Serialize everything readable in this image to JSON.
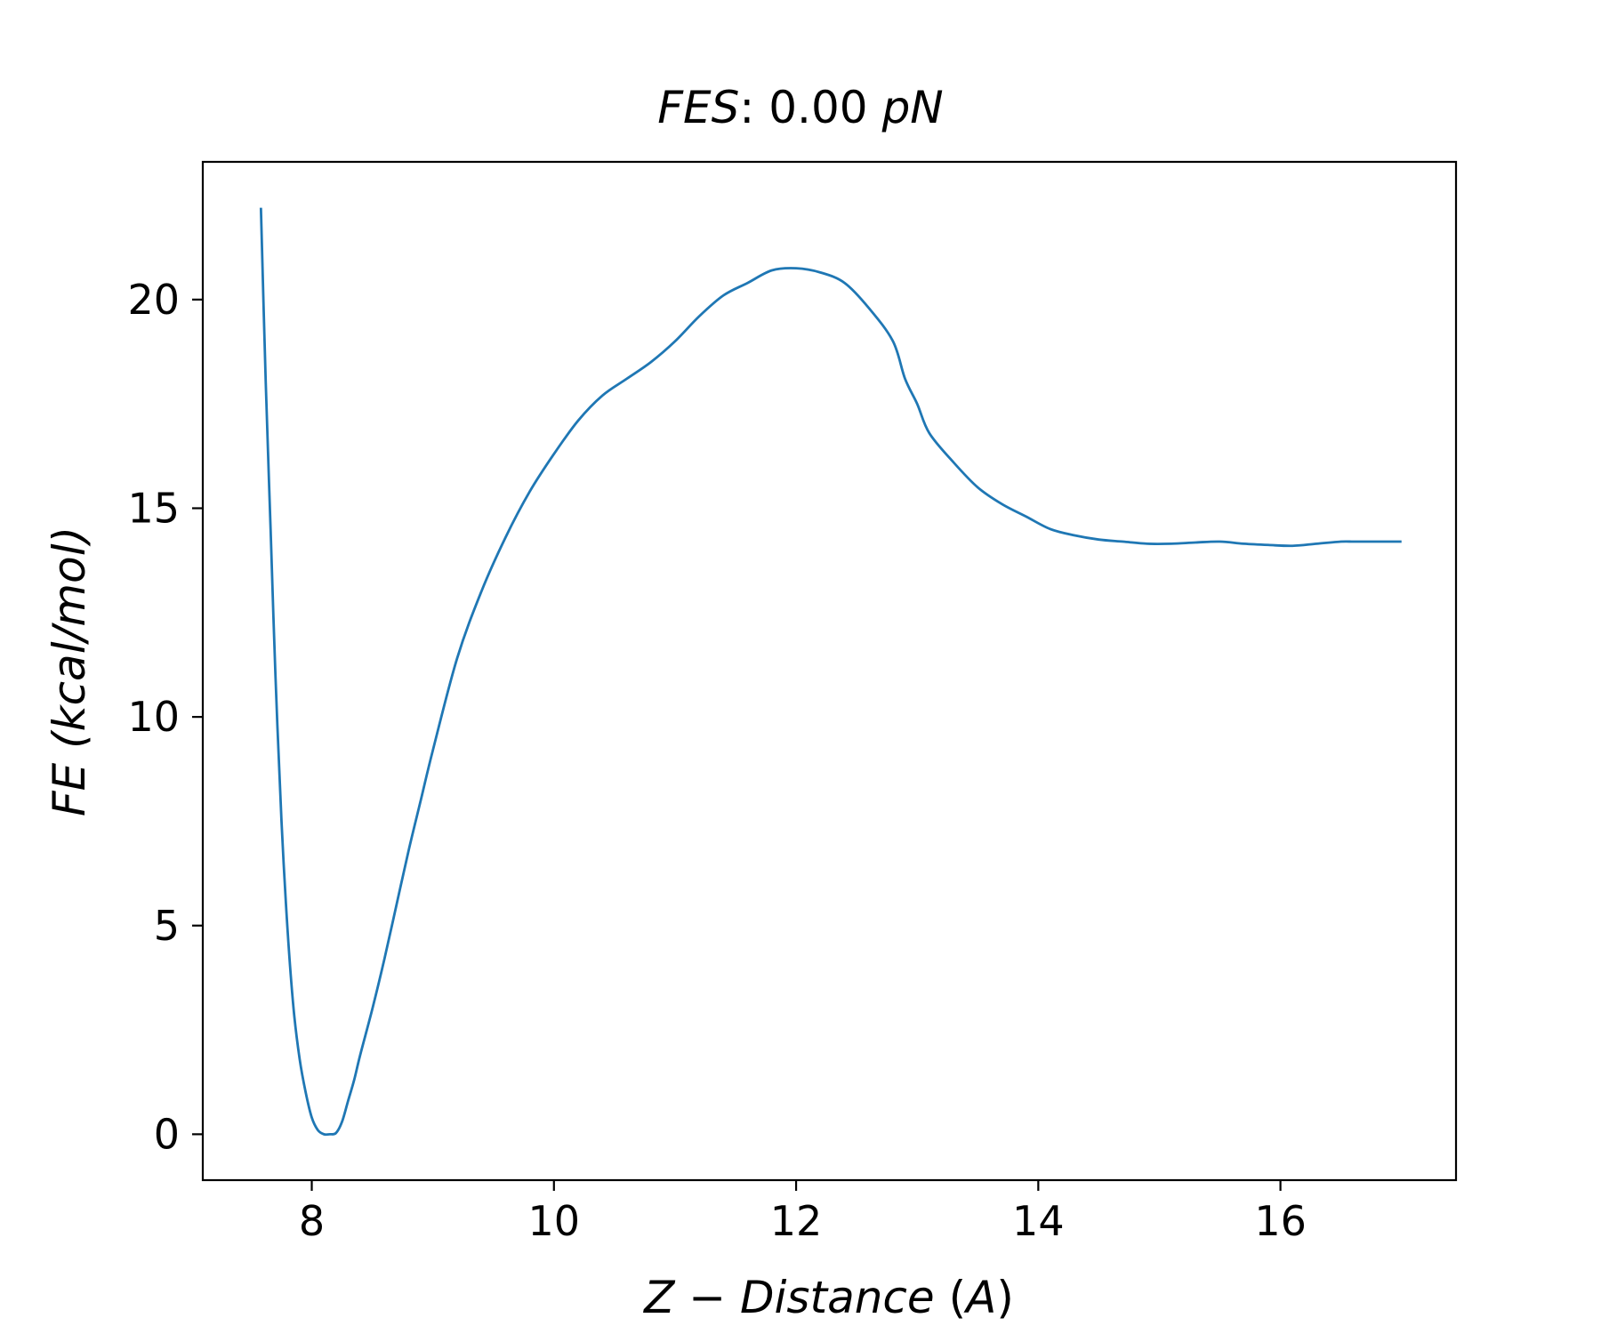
{
  "chart_data": {
    "type": "line",
    "title": {
      "main": "FES",
      "separator": ":",
      "value": "0.00",
      "unit": "pN"
    },
    "xlabel": {
      "main": "Z − Distance",
      "paren_open": "(",
      "unit": "A",
      "paren_close": ")"
    },
    "ylabel": "FE (kcal/mol)",
    "xlim": [
      7.1,
      17.45
    ],
    "ylim": [
      -1.1,
      23.3
    ],
    "xticks": [
      8,
      10,
      12,
      14,
      16
    ],
    "yticks": [
      0,
      5,
      10,
      15,
      20
    ],
    "grid": false,
    "line_color": "#1f77b4",
    "series": [
      {
        "x": [
          7.58,
          7.62,
          7.66,
          7.7,
          7.75,
          7.8,
          7.85,
          7.9,
          7.95,
          8.0,
          8.05,
          8.1,
          8.15,
          8.2,
          8.25,
          8.3,
          8.35,
          8.4,
          8.5,
          8.6,
          8.7,
          8.8,
          8.9,
          9.0,
          9.2,
          9.4,
          9.6,
          9.8,
          10.0,
          10.2,
          10.4,
          10.6,
          10.8,
          11.0,
          11.2,
          11.4,
          11.6,
          11.8,
          12.0,
          12.2,
          12.4,
          12.6,
          12.8,
          12.9,
          13.0,
          13.1,
          13.3,
          13.5,
          13.7,
          13.9,
          14.1,
          14.3,
          14.5,
          14.7,
          14.9,
          15.1,
          15.3,
          15.5,
          15.7,
          15.9,
          16.1,
          16.3,
          16.5,
          16.6,
          16.7,
          16.85,
          17.0
        ],
        "y": [
          22.2,
          18.0,
          14.5,
          11.0,
          7.5,
          4.9,
          3.0,
          1.8,
          1.0,
          0.4,
          0.1,
          0.0,
          0.0,
          0.03,
          0.3,
          0.8,
          1.3,
          1.9,
          3.0,
          4.2,
          5.5,
          6.8,
          8.0,
          9.2,
          11.4,
          13.0,
          14.3,
          15.4,
          16.3,
          17.1,
          17.7,
          18.1,
          18.5,
          19.0,
          19.6,
          20.1,
          20.4,
          20.7,
          20.75,
          20.65,
          20.4,
          19.8,
          19.0,
          18.1,
          17.5,
          16.8,
          16.1,
          15.5,
          15.1,
          14.8,
          14.5,
          14.35,
          14.25,
          14.2,
          14.15,
          14.15,
          14.18,
          14.2,
          14.15,
          14.12,
          14.1,
          14.15,
          14.2,
          14.2,
          14.2,
          14.2,
          14.2
        ]
      }
    ]
  }
}
